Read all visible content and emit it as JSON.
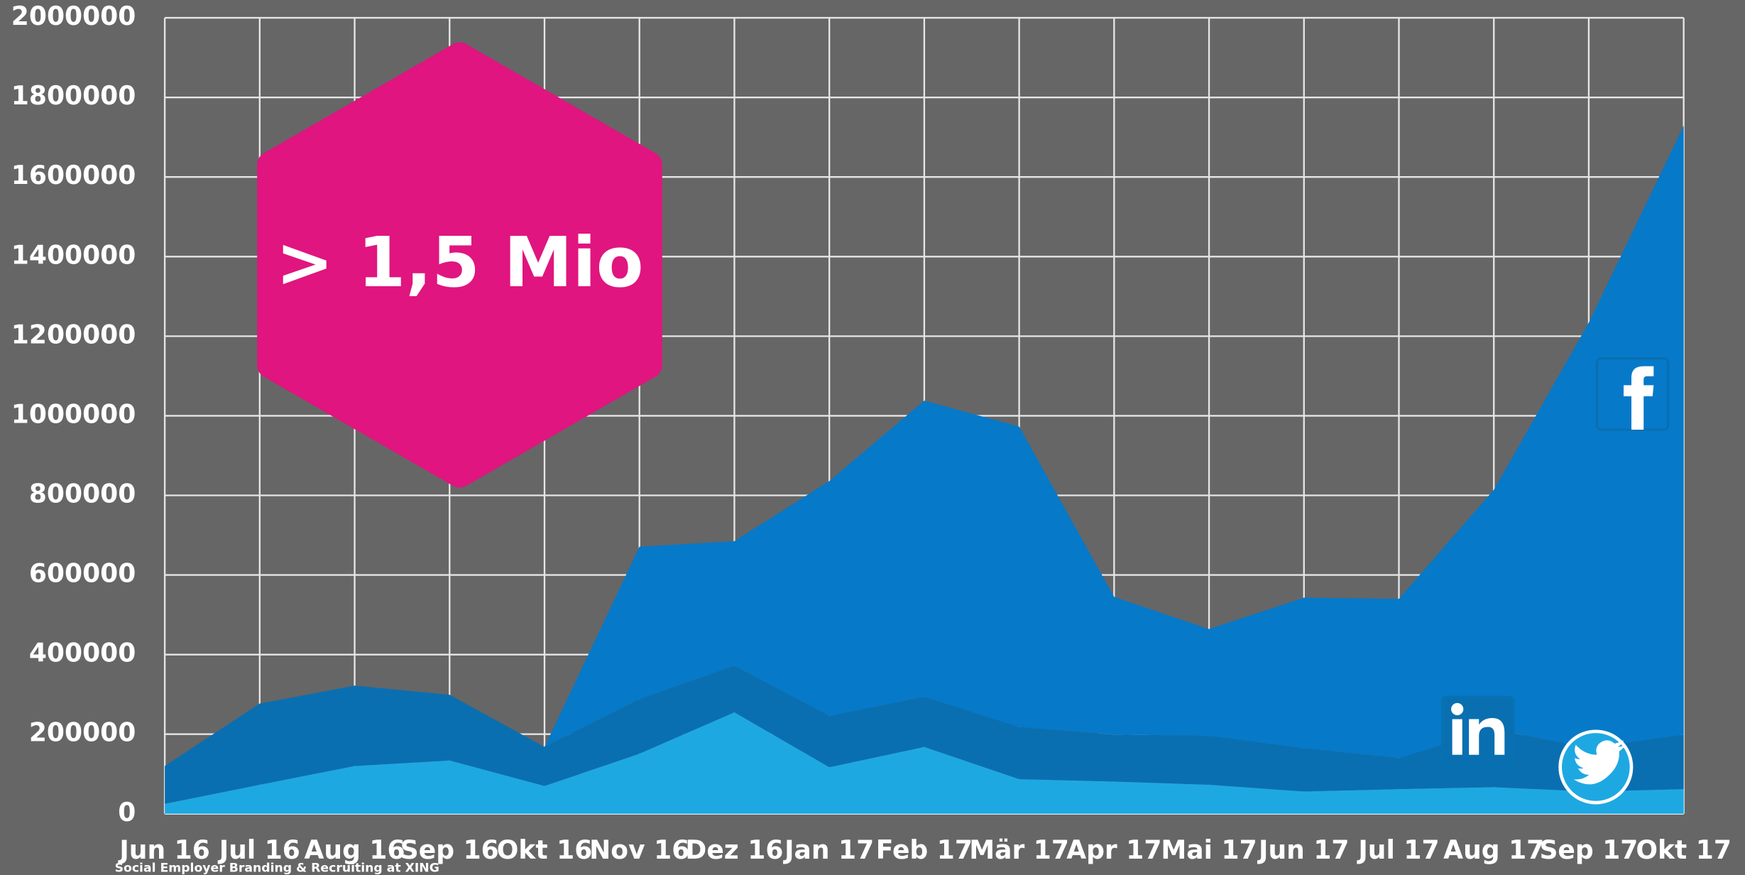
{
  "chart_data": {
    "type": "stacked_area",
    "annotation": "> 1,5 Mio",
    "footer": "Social Employer Branding & Recruiting at XING",
    "categories": [
      "Jun 16",
      "Jul 16",
      "Aug 16",
      "Sep 16",
      "Okt 16",
      "Nov 16",
      "Dez 16",
      "Jan 17",
      "Feb 17",
      "Mär 17",
      "Apr 17",
      "Mai 17",
      "Jun 17",
      "Jul 17",
      "Aug 17",
      "Sep 17",
      "Okt 17"
    ],
    "series": [
      {
        "color": "#1ea8e2",
        "values": [
          25000,
          73000,
          120000,
          134000,
          70000,
          151000,
          255000,
          117000,
          168000,
          87000,
          81000,
          73000,
          56000,
          62000,
          67000,
          56000,
          62000
        ]
      },
      {
        "color": "#0a6fb0",
        "values": [
          95000,
          204000,
          202000,
          165000,
          98000,
          137000,
          117000,
          129000,
          126000,
          131000,
          118000,
          123000,
          109000,
          78000,
          146000,
          109000,
          137000
        ]
      },
      {
        "color": "#0679c9",
        "values": [
          0,
          0,
          0,
          0,
          0,
          383000,
          313000,
          590000,
          744000,
          755000,
          346000,
          268000,
          378000,
          400000,
          601000,
          1069000,
          1530000
        ]
      }
    ],
    "ylim": [
      0,
      2000000
    ],
    "yticks": [
      0,
      200000,
      400000,
      600000,
      800000,
      1000000,
      1200000,
      1400000,
      1600000,
      1800000,
      2000000
    ],
    "grid": true
  }
}
